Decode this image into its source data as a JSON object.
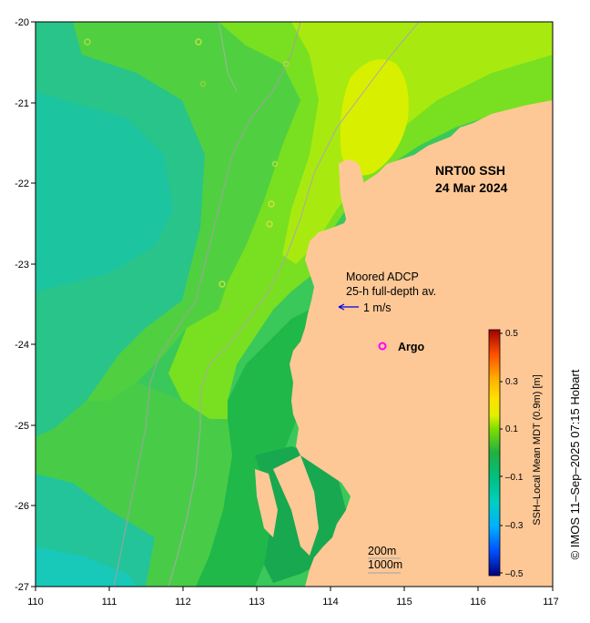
{
  "map": {
    "title_line1": "NRT00 SSH",
    "title_line2": "24 Mar 2024",
    "x_ticks": [
      "110",
      "111",
      "112",
      "113",
      "114",
      "115",
      "116",
      "117"
    ],
    "y_ticks": [
      "-20",
      "-21",
      "-22",
      "-23",
      "-24",
      "-25",
      "-26",
      "-27"
    ],
    "x_range": [
      110,
      117
    ],
    "y_range": [
      -27,
      -20
    ],
    "land_color": "#fdc896",
    "annotations": {
      "adcp_line1": "Moored ADCP",
      "adcp_line2": "25-h full-depth av.",
      "velocity_scale": "1 m/s",
      "argo_label": "Argo",
      "isobath_1": "200m",
      "isobath_2": "1000m"
    },
    "colorbar": {
      "label": "SSH–Local Mean MDT (0.9m) [m]",
      "ticks": [
        "0.5",
        "0.3",
        "0.1",
        "–0.1",
        "–0.3",
        "–0.5"
      ],
      "range": [
        -0.5,
        0.5
      ]
    },
    "credit": "© IMOS 11–Sep–2025 07:15 Hobart"
  }
}
